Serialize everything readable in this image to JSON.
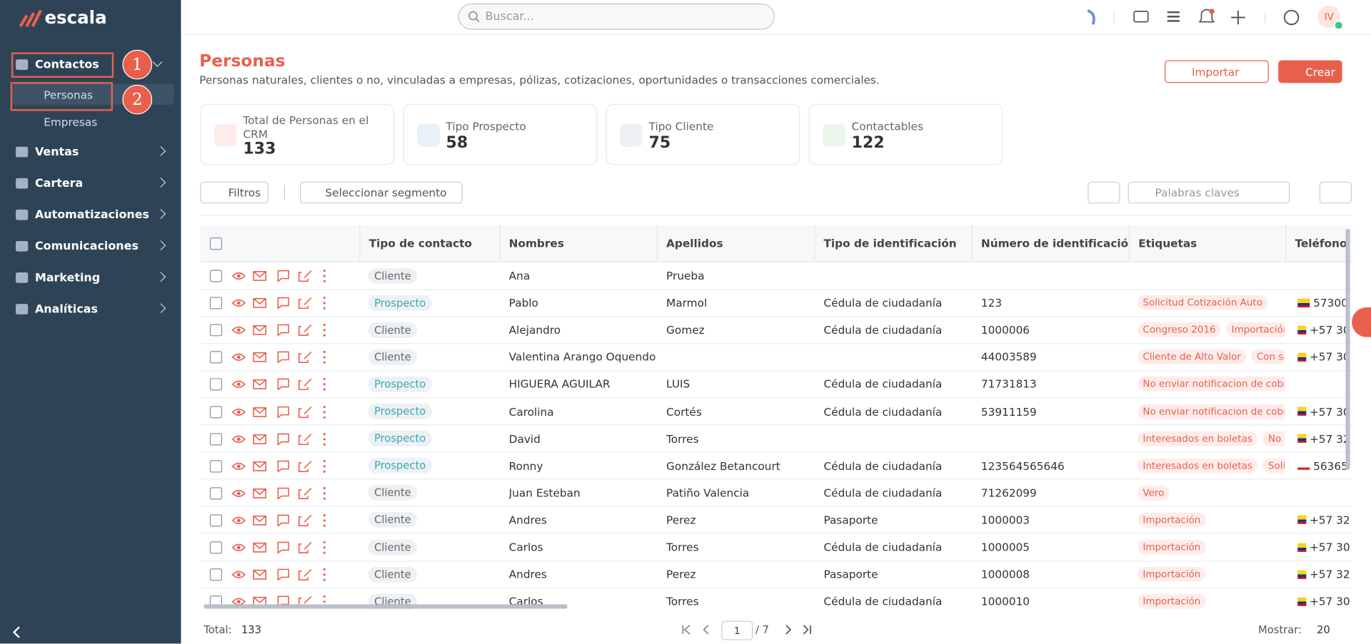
{
  "brand": "escala",
  "topbar": {
    "search_placeholder": "Buscar...",
    "user_initials": "IV"
  },
  "sidebar": {
    "items": [
      {
        "label": "Contactos",
        "badge": 1,
        "children": [
          {
            "label": "Personas",
            "badge": 2
          },
          {
            "label": "Empresas"
          }
        ]
      },
      {
        "label": "Ventas"
      },
      {
        "label": "Cartera"
      },
      {
        "label": "Automatizaciones"
      },
      {
        "label": "Comunicaciones"
      },
      {
        "label": "Marketing"
      },
      {
        "label": "Analíticas"
      }
    ]
  },
  "header": {
    "title": "Personas",
    "subtitle": "Personas naturales, clientes o no, vinculadas a empresas, pólizas, cotizaciones, oportunidades o transacciones comerciales.",
    "import_button": "Importar",
    "create_button": "Crear"
  },
  "stats": [
    {
      "label": "Total de Personas en el CRM",
      "value": 133
    },
    {
      "label": "Tipo Prospecto",
      "value": 58
    },
    {
      "label": "Tipo Cliente",
      "value": 75
    },
    {
      "label": "Contactables",
      "value": 122
    }
  ],
  "toolbar": {
    "filters": "Filtros",
    "segment": "Seleccionar segmento",
    "keywords_placeholder": "Palabras claves"
  },
  "table": {
    "columns": [
      "Tipo de contacto",
      "Nombres",
      "Apellidos",
      "Tipo de identificación",
      "Número de identificación",
      "Etiquetas",
      "Teléfono"
    ],
    "rows": [
      {
        "type": "Cliente",
        "first": "Ana",
        "last": "Prueba",
        "id_type": null,
        "id_number": null,
        "tags": [],
        "phone": null,
        "flag": null
      },
      {
        "type": "Prospecto",
        "first": "Pablo",
        "last": "Marmol",
        "id_type": "Cédula de ciudadanía",
        "id_number": "123",
        "tags": [
          "Solicitud Cotización Auto"
        ],
        "phone": "57300",
        "flag": "co"
      },
      {
        "type": "Cliente",
        "first": "Alejandro",
        "last": "Gomez",
        "id_type": "Cédula de ciudadanía",
        "id_number": "1000006",
        "tags": [
          "Congreso 2016",
          "Importación"
        ],
        "phone": "+57 30",
        "flag": "co"
      },
      {
        "type": "Cliente",
        "first": "Valentina Arango Oquendo",
        "last": null,
        "id_type": null,
        "id_number": "44003589",
        "tags": [
          "Cliente de Alto Valor",
          "Con sa"
        ],
        "phone": "+57 30",
        "flag": "co"
      },
      {
        "type": "Prospecto",
        "first": "HIGUERA AGUILAR",
        "last": "LUIS",
        "id_type": "Cédula de ciudadanía",
        "id_number": "71731813",
        "tags": [
          "No enviar notificacion de cobr"
        ],
        "phone": null,
        "flag": null
      },
      {
        "type": "Prospecto",
        "first": "Carolina",
        "last": "Cortés",
        "id_type": "Cédula de ciudadanía",
        "id_number": "53911159",
        "tags": [
          "No enviar notificacion de cobr"
        ],
        "phone": "+57 30",
        "flag": "co"
      },
      {
        "type": "Prospecto",
        "first": "David",
        "last": "Torres",
        "id_type": null,
        "id_number": null,
        "tags": [
          "Interesados en boletas",
          "No e"
        ],
        "phone": "+57 32",
        "flag": "co"
      },
      {
        "type": "Prospecto",
        "first": "Ronny",
        "last": "González Betancourt",
        "id_type": "Cédula de ciudadanía",
        "id_number": "123564565646",
        "tags": [
          "Interesados en boletas",
          "Soli"
        ],
        "phone": "56365",
        "flag": "cl"
      },
      {
        "type": "Cliente",
        "first": "Juan Esteban",
        "last": "Patiño Valencia",
        "id_type": "Cédula de ciudadanía",
        "id_number": "71262099",
        "tags": [
          "Vero"
        ],
        "phone": null,
        "flag": null
      },
      {
        "type": "Cliente",
        "first": "Andres",
        "last": "Perez",
        "id_type": "Pasaporte",
        "id_number": "1000003",
        "tags": [
          "Importación"
        ],
        "phone": "+57 32",
        "flag": "co"
      },
      {
        "type": "Cliente",
        "first": "Carlos",
        "last": "Torres",
        "id_type": "Cédula de ciudadanía",
        "id_number": "1000005",
        "tags": [
          "Importación"
        ],
        "phone": "+57 30",
        "flag": "co"
      },
      {
        "type": "Cliente",
        "first": "Andres",
        "last": "Perez",
        "id_type": "Pasaporte",
        "id_number": "1000008",
        "tags": [
          "Importación"
        ],
        "phone": "+57 32",
        "flag": "co"
      },
      {
        "type": "Cliente",
        "first": "Carlos",
        "last": "Torres",
        "id_type": "Cédula de ciudadanía",
        "id_number": "1000010",
        "tags": [
          "Importación"
        ],
        "phone": "+57 30",
        "flag": "co"
      }
    ]
  },
  "footer": {
    "total_label": "Total:",
    "total": 133,
    "page": 1,
    "pages_label": "/ 7",
    "show_label": "Mostrar:",
    "page_size": 20
  }
}
